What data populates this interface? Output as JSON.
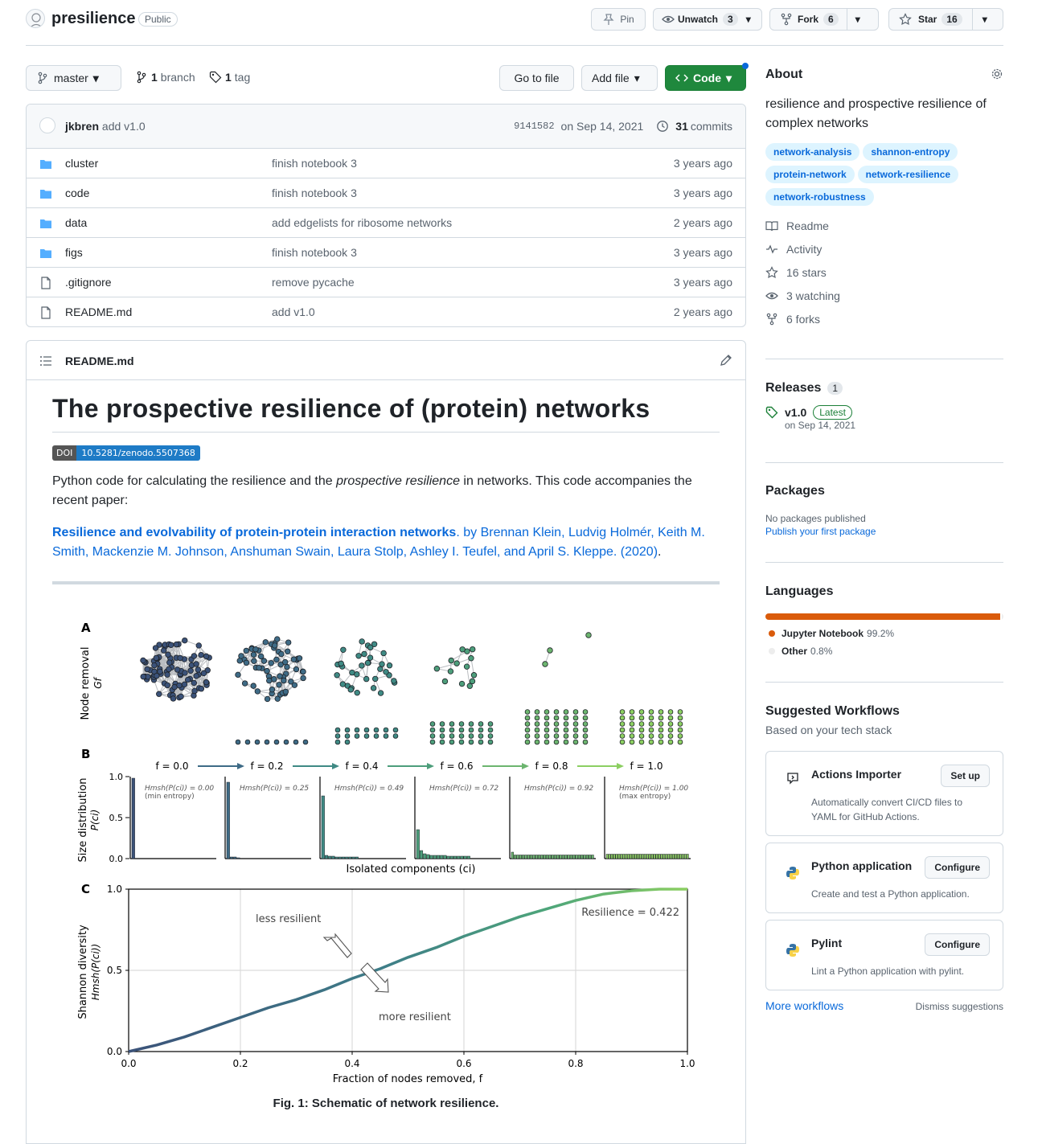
{
  "repo": {
    "name": "presilience",
    "visibility": "Public"
  },
  "actions": {
    "pin": "Pin",
    "unwatch": "Unwatch",
    "unwatch_count": "3",
    "fork": "Fork",
    "fork_count": "6",
    "star": "Star",
    "star_count": "16"
  },
  "toolbar": {
    "branch": "master",
    "branches_count": "1",
    "branches_label": "branch",
    "tags_count": "1",
    "tags_label": "tag",
    "go_to_file": "Go to file",
    "add_file": "Add file",
    "code": "Code"
  },
  "commit": {
    "author": "jkbren",
    "message": "add v1.0",
    "hash": "9141582",
    "date": "on Sep 14, 2021",
    "commits_count": "31",
    "commits_label": "commits"
  },
  "files": [
    {
      "name": "cluster",
      "type": "folder",
      "message": "finish notebook 3",
      "age": "3 years ago"
    },
    {
      "name": "code",
      "type": "folder",
      "message": "finish notebook 3",
      "age": "3 years ago"
    },
    {
      "name": "data",
      "type": "folder",
      "message": "add edgelists for ribosome networks",
      "age": "2 years ago"
    },
    {
      "name": "figs",
      "type": "folder",
      "message": "finish notebook 3",
      "age": "3 years ago"
    },
    {
      "name": ".gitignore",
      "type": "file",
      "message": "remove pycache",
      "age": "3 years ago"
    },
    {
      "name": "README.md",
      "type": "file",
      "message": "add v1.0",
      "age": "2 years ago"
    }
  ],
  "readme": {
    "filename": "README.md",
    "title": "The prospective resilience of (protein) networks",
    "doi_label": "DOI",
    "doi_value": "10.5281/zenodo.5507368",
    "intro_1": "Python code for calculating the resilience and the ",
    "intro_em": "prospective resilience",
    "intro_2": " in networks. This code accompanies the recent paper:",
    "paper_title": "Resilience and evolvability of protein-protein interaction networks",
    "paper_authors": ". by Brennan Klein, Ludvig Holmér, Keith M. Smith, Mackenzie M. Johnson, Anshuman Swain, Laura Stolp, Ashley I. Teufel, and April S. Kleppe. (2020)",
    "paper_end": ".",
    "fig_caption": "Fig. 1: Schematic of network resilience."
  },
  "figure": {
    "panel_a": "A",
    "panel_b": "B",
    "panel_c": "C",
    "a_ylabel_1": "Node removal",
    "a_ylabel_2": "Gf",
    "b_ylabel_1": "Size distribution",
    "b_ylabel_2": "P(ci)",
    "b_xlabel": "Isolated components (ci)",
    "f_labels": [
      "f = 0.0",
      "f = 0.2",
      "f = 0.4",
      "f = 0.6",
      "f = 0.8",
      "f = 1.0"
    ],
    "b_entropies": [
      "Hmsh(P(ci)) = 0.00",
      "Hmsh(P(ci)) = 0.25",
      "Hmsh(P(ci)) = 0.49",
      "Hmsh(P(ci)) = 0.72",
      "Hmsh(P(ci)) = 0.92",
      "Hmsh(P(ci)) = 1.00"
    ],
    "b_notes": [
      "(min entropy)",
      "",
      "",
      "",
      "",
      "(max entropy)"
    ],
    "b_yticks": [
      "1.0",
      "0.5",
      "0.0"
    ],
    "f_colors": [
      "#3b5279",
      "#3e6b86",
      "#3f8a84",
      "#4d9e7b",
      "#6cb56f",
      "#8ccf62"
    ]
  },
  "chart_data": {
    "type": "line",
    "title": "",
    "xlabel": "Fraction of nodes removed, f",
    "ylabel": "Shannon diversity Hmsh(P(ci))",
    "xlim": [
      0,
      1
    ],
    "ylim": [
      0,
      1
    ],
    "x_ticks": [
      "0.0",
      "0.2",
      "0.4",
      "0.6",
      "0.8",
      "1.0"
    ],
    "y_ticks": [
      "0.0",
      "0.5",
      "1.0"
    ],
    "grid": true,
    "series": [
      {
        "x": [
          0,
          0.05,
          0.1,
          0.15,
          0.2,
          0.25,
          0.3,
          0.35,
          0.4,
          0.45,
          0.5,
          0.55,
          0.6,
          0.65,
          0.7,
          0.75,
          0.8,
          0.85,
          0.9,
          0.95,
          1.0
        ],
        "values": [
          0,
          0.04,
          0.09,
          0.15,
          0.21,
          0.27,
          0.32,
          0.38,
          0.45,
          0.51,
          0.58,
          0.64,
          0.71,
          0.77,
          0.83,
          0.88,
          0.93,
          0.97,
          0.99,
          1.0,
          1.0
        ]
      }
    ],
    "annotations": [
      "Resilience = 0.422",
      "less resilient",
      "more resilient"
    ]
  },
  "about": {
    "heading": "About",
    "description": "resilience and prospective resilience of complex networks",
    "topics": [
      "network-analysis",
      "shannon-entropy",
      "protein-network",
      "network-resilience",
      "network-robustness"
    ],
    "links": [
      {
        "icon": "book-icon",
        "label": "Readme"
      },
      {
        "icon": "pulse-icon",
        "label": "Activity"
      },
      {
        "icon": "star-icon",
        "label": "16 stars"
      },
      {
        "icon": "eye-icon",
        "label": "3 watching"
      },
      {
        "icon": "fork-icon",
        "label": "6 forks"
      }
    ]
  },
  "releases": {
    "heading": "Releases",
    "count": "1",
    "tag": "v1.0",
    "latest": "Latest",
    "date": "on Sep 14, 2021"
  },
  "packages": {
    "heading": "Packages",
    "none": "No packages published",
    "publish": "Publish your first package"
  },
  "languages": {
    "heading": "Languages",
    "items": [
      {
        "name": "Jupyter Notebook",
        "pct": "99.2%",
        "value": 99.2,
        "color": "#DA5B0B"
      },
      {
        "name": "Other",
        "pct": "0.8%",
        "value": 0.8,
        "color": "#ededed"
      }
    ]
  },
  "workflows": {
    "heading": "Suggested Workflows",
    "sub": "Based on your tech stack",
    "items": [
      {
        "title": "Actions Importer",
        "button": "Set up",
        "desc": "Automatically convert CI/CD files to YAML for GitHub Actions."
      },
      {
        "title": "Python application",
        "button": "Configure",
        "desc": "Create and test a Python application."
      },
      {
        "title": "Pylint",
        "button": "Configure",
        "desc": "Lint a Python application with pylint."
      }
    ],
    "more": "More workflows",
    "dismiss": "Dismiss suggestions"
  }
}
